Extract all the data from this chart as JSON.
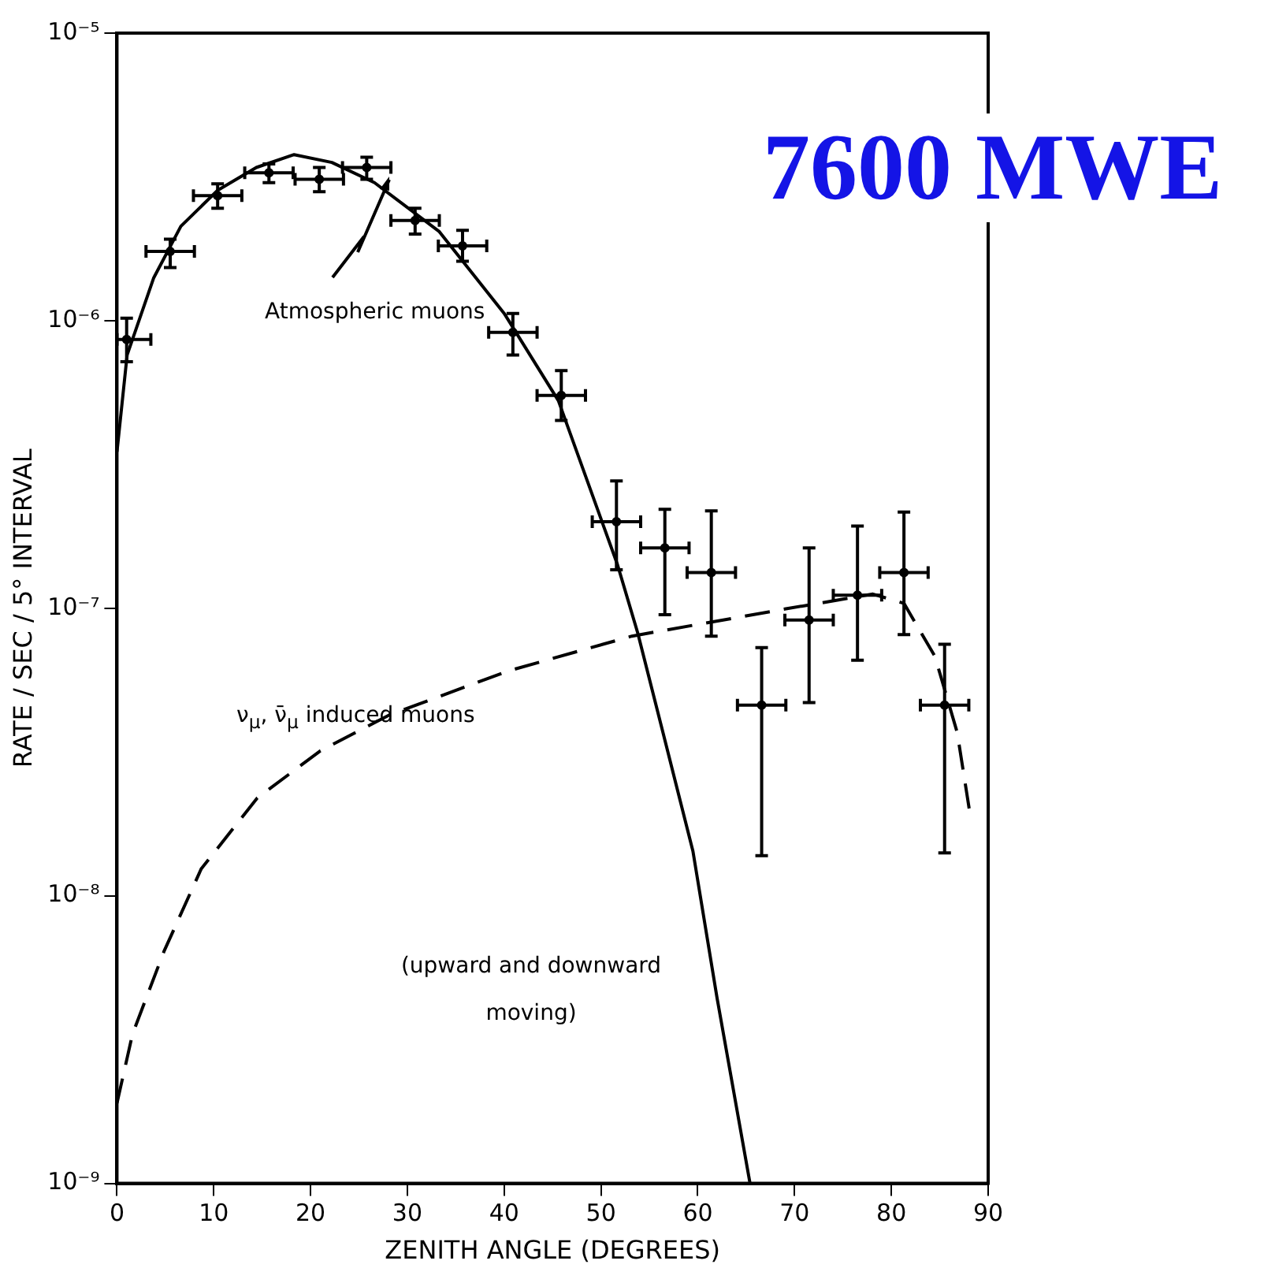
{
  "chart_data": {
    "type": "line",
    "title": "7600 MWE",
    "xlabel": "ZENITH ANGLE (DEGREES)",
    "ylabel": "RATE / SEC / 5° INTERVAL",
    "xlim": [
      0,
      90
    ],
    "xticks": [
      0,
      10,
      20,
      30,
      40,
      50,
      60,
      70,
      80,
      90
    ],
    "ylim": [
      1e-09,
      1e-05
    ],
    "yticks": [
      {
        "value": 1e-09,
        "label": "10⁻⁹"
      },
      {
        "value": 1e-08,
        "label": "10⁻⁸"
      },
      {
        "value": 1e-07,
        "label": "10⁻⁷"
      },
      {
        "value": 1e-06,
        "label": "10⁻⁶"
      },
      {
        "value": 1e-05,
        "label": "10⁻⁵"
      }
    ],
    "log": "y",
    "grid": false,
    "legend": false,
    "annotations": [
      "(upward and downward moving)"
    ],
    "series": [
      {
        "type": "scatter",
        "color": "#000000",
        "marker": "circle",
        "x": [
          1,
          5.5,
          10.4,
          15.7,
          20.9,
          25.8,
          30.8,
          35.7,
          40.9,
          45.9,
          51.6,
          56.6,
          61.4,
          66.6,
          71.5,
          76.5,
          81.3,
          85.5
        ],
        "values": [
          8.6e-07,
          1.74e-06,
          2.72e-06,
          3.27e-06,
          3.1e-06,
          3.41e-06,
          2.23e-06,
          1.82e-06,
          9.1e-07,
          5.5e-07,
          2e-07,
          1.62e-07,
          1.33e-07,
          4.6e-08,
          9.1e-08,
          1.11e-07,
          1.33e-07,
          4.6e-08
        ],
        "errors": [
          [
            7.2e-07,
            1.02e-06
          ],
          [
            1.53e-06,
            1.92e-06
          ],
          [
            2.46e-06,
            2.99e-06
          ],
          [
            3.02e-06,
            3.51e-06
          ],
          [
            2.81e-06,
            3.41e-06
          ],
          [
            3.1e-06,
            3.7e-06
          ],
          [
            2e-06,
            2.46e-06
          ],
          [
            1.61e-06,
            2.06e-06
          ],
          [
            7.6e-07,
            1.06e-06
          ],
          [
            4.5e-07,
            6.7e-07
          ],
          [
            1.36e-07,
            2.77e-07
          ],
          [
            9.5e-08,
            2.21e-07
          ],
          [
            8e-08,
            2.18e-07
          ],
          [
            1.38e-08,
            7.3e-08
          ],
          [
            4.7e-08,
            1.62e-07
          ],
          [
            6.6e-08,
            1.93e-07
          ],
          [
            8.1e-08,
            2.16e-07
          ],
          [
            1.41e-08,
            7.5e-08
          ]
        ],
        "xerrors": [
          [
            0,
            3.5
          ],
          [
            3,
            8
          ],
          [
            7.9,
            12.9
          ],
          [
            13.2,
            18.2
          ],
          [
            18.4,
            23.4
          ],
          [
            23.3,
            28.3
          ],
          [
            28.3,
            33.3
          ],
          [
            33.2,
            38.2
          ],
          [
            38.4,
            43.4
          ],
          [
            43.4,
            48.4
          ],
          [
            49.1,
            54.1
          ],
          [
            54.1,
            59.1
          ],
          [
            58.9,
            63.9
          ],
          [
            64.1,
            69.1
          ],
          [
            69,
            74
          ],
          [
            74,
            79
          ],
          [
            78.8,
            83.8
          ],
          [
            83,
            88
          ]
        ]
      },
      {
        "name": "Atmospheric muons",
        "color": "#000000",
        "marker": "none",
        "line_style": "solid",
        "x": [
          0,
          1.05,
          3.8,
          6.6,
          10.4,
          14.4,
          18.3,
          22.2,
          26.6,
          33.3,
          40.0,
          45.6,
          51.7,
          53.8,
          56.4,
          59.5,
          62.0,
          65.4
        ],
        "values": [
          3.5e-07,
          7.6e-07,
          1.41e-06,
          2.13e-06,
          2.84e-06,
          3.41e-06,
          3.78e-06,
          3.55e-06,
          3.02e-06,
          2.04e-06,
          1.06e-06,
          5.27e-07,
          1.42e-07,
          8.2e-08,
          3.7e-08,
          1.43e-08,
          4.4e-09,
          1e-09
        ]
      },
      {
        "name": "ν$_{μ}$, ν̄$_{μ}$ induced muons",
        "color": "#000000",
        "marker": "none",
        "line_style": "dashed",
        "x": [
          0,
          1.6,
          4.85,
          8.7,
          14.5,
          21.0,
          28.1,
          40.4,
          53.2,
          69.1,
          78.1,
          81.3,
          84.5,
          86.8,
          88.1
        ],
        "values": [
          1.9e-09,
          3.3e-09,
          6.4e-09,
          1.24e-08,
          2.19e-08,
          3.19e-08,
          4.25e-08,
          6.05e-08,
          8e-08,
          9.95e-08,
          1.12e-07,
          1.04e-07,
          6.8e-08,
          3.7e-08,
          1.95e-08
        ]
      }
    ]
  }
}
